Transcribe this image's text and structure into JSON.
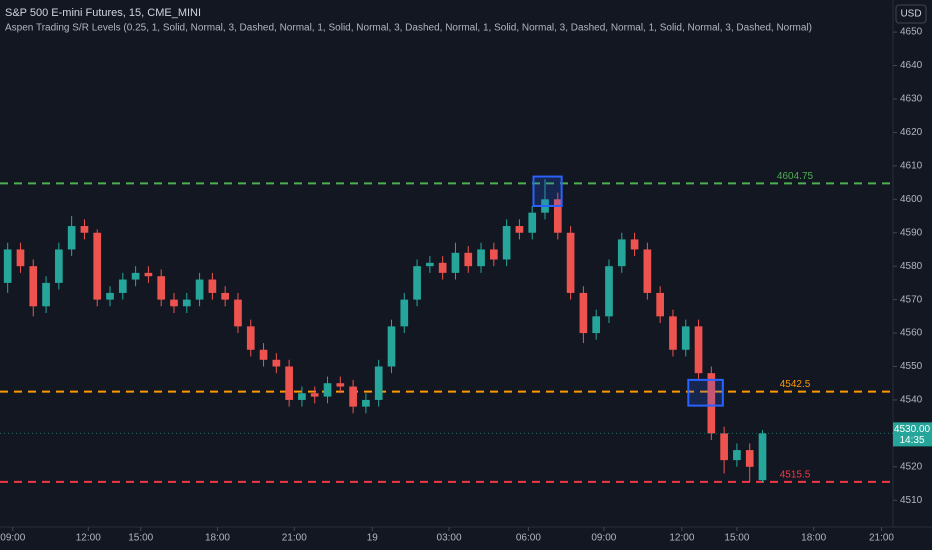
{
  "chart_data": {
    "type": "candlestick",
    "title": "S&P 500 E-mini Futures, 15, CME_MINI",
    "subtitle": "Aspen Trading S/R Levels (0.25, 1, Solid, Normal, 3, Dashed, Normal, 1, Solid, Normal, 3, Dashed, Normal, 1, Solid, Normal, 3, Dashed, Normal, 1, Solid, Normal, 3, Dashed, Normal)",
    "currency": "USD",
    "up_color": "#26a69a",
    "down_color": "#ef5350",
    "open": [
      4575,
      4585,
      4580,
      4568,
      4575,
      4585,
      4592,
      4590,
      4570,
      4572,
      4576,
      4578,
      4577,
      4570,
      4568,
      4570,
      4576,
      4572,
      4570,
      4562,
      4555,
      4552,
      4550,
      4540,
      4542,
      4541,
      4545,
      4544,
      4538,
      4540,
      4550,
      4562,
      4570,
      4580,
      4581,
      4578,
      4584,
      4580,
      4585,
      4582,
      4592,
      4590,
      4596,
      4600,
      4590,
      4572,
      4560,
      4565,
      4580,
      4588,
      4585,
      4572,
      4565,
      4555,
      4562,
      4548,
      4530,
      4522,
      4525,
      4516
    ],
    "high": [
      4587,
      4587,
      4582,
      4577,
      4587,
      4595,
      4594,
      4591,
      4574,
      4578,
      4580,
      4580,
      4579,
      4572,
      4572,
      4578,
      4578,
      4574,
      4572,
      4564,
      4557,
      4554,
      4552,
      4544,
      4544,
      4547,
      4547,
      4546,
      4542,
      4552,
      4564,
      4572,
      4582,
      4583,
      4583,
      4587,
      4586,
      4587,
      4587,
      4594,
      4594,
      4598,
      4606,
      4602,
      4592,
      4574,
      4567,
      4582,
      4590,
      4590,
      4587,
      4574,
      4567,
      4564,
      4564,
      4550,
      4532,
      4527,
      4527,
      4531
    ],
    "low": [
      4572,
      4578,
      4565,
      4566,
      4573,
      4583,
      4588,
      4568,
      4568,
      4570,
      4574,
      4575,
      4568,
      4566,
      4566,
      4568,
      4570,
      4568,
      4560,
      4553,
      4550,
      4548,
      4538,
      4538,
      4539,
      4539,
      4542,
      4536,
      4536,
      4538,
      4548,
      4560,
      4568,
      4578,
      4576,
      4576,
      4578,
      4578,
      4580,
      4580,
      4588,
      4588,
      4594,
      4588,
      4570,
      4557,
      4558,
      4563,
      4578,
      4583,
      4570,
      4563,
      4553,
      4553,
      4546,
      4528,
      4518,
      4520,
      4515.5,
      4515.5
    ],
    "close": [
      4585,
      4580,
      4568,
      4575,
      4585,
      4592,
      4590,
      4570,
      4572,
      4576,
      4578,
      4577,
      4570,
      4568,
      4570,
      4576,
      4572,
      4570,
      4562,
      4555,
      4552,
      4550,
      4540,
      4542,
      4541,
      4545,
      4544,
      4538,
      4540,
      4550,
      4562,
      4570,
      4580,
      4581,
      4578,
      4584,
      4580,
      4585,
      4582,
      4592,
      4590,
      4596,
      4600,
      4590,
      4572,
      4560,
      4565,
      4580,
      4588,
      4585,
      4572,
      4565,
      4555,
      4562,
      4548,
      4530,
      4522,
      4525,
      4520,
      4530
    ],
    "xlim": [
      -0.6,
      69.2
    ],
    "xticks": [
      {
        "value": 0.4,
        "label": "09:00"
      },
      {
        "value": 6.3,
        "label": "12:00"
      },
      {
        "value": 10.4,
        "label": "15:00"
      },
      {
        "value": 16.4,
        "label": "18:00"
      },
      {
        "value": 22.4,
        "label": "21:00"
      },
      {
        "value": 28.5,
        "label": "19"
      },
      {
        "value": 34.5,
        "label": "03:00"
      },
      {
        "value": 40.7,
        "label": "06:00"
      },
      {
        "value": 46.6,
        "label": "09:00"
      },
      {
        "value": 52.7,
        "label": "12:00"
      },
      {
        "value": 57,
        "label": "15:00"
      },
      {
        "value": 63,
        "label": "18:00"
      },
      {
        "value": 68.3,
        "label": "21:00"
      }
    ],
    "ylim": [
      4502,
      4659.6
    ],
    "yticks": [
      4510,
      4520,
      4530,
      4540,
      4550,
      4560,
      4570,
      4580,
      4590,
      4600,
      4610,
      4620,
      4630,
      4640,
      4650
    ],
    "grid": false,
    "levels": [
      {
        "value": 4604.75,
        "color": "#4caf50"
      },
      {
        "value": 4542.5,
        "color": "#ff9800"
      },
      {
        "value": 4515.5,
        "color": "#f23645"
      }
    ],
    "zones": [
      {
        "x0": 41.1,
        "x1": 43.3,
        "low": 4598,
        "high": 4606.8,
        "color": "#2962ff"
      },
      {
        "x0": 53.2,
        "x1": 55.9,
        "low": 4538.3,
        "high": 4546,
        "color": "#2962ff"
      }
    ],
    "last_price": {
      "value": 4530,
      "label": "4530.00"
    },
    "countdown": "14:35"
  }
}
